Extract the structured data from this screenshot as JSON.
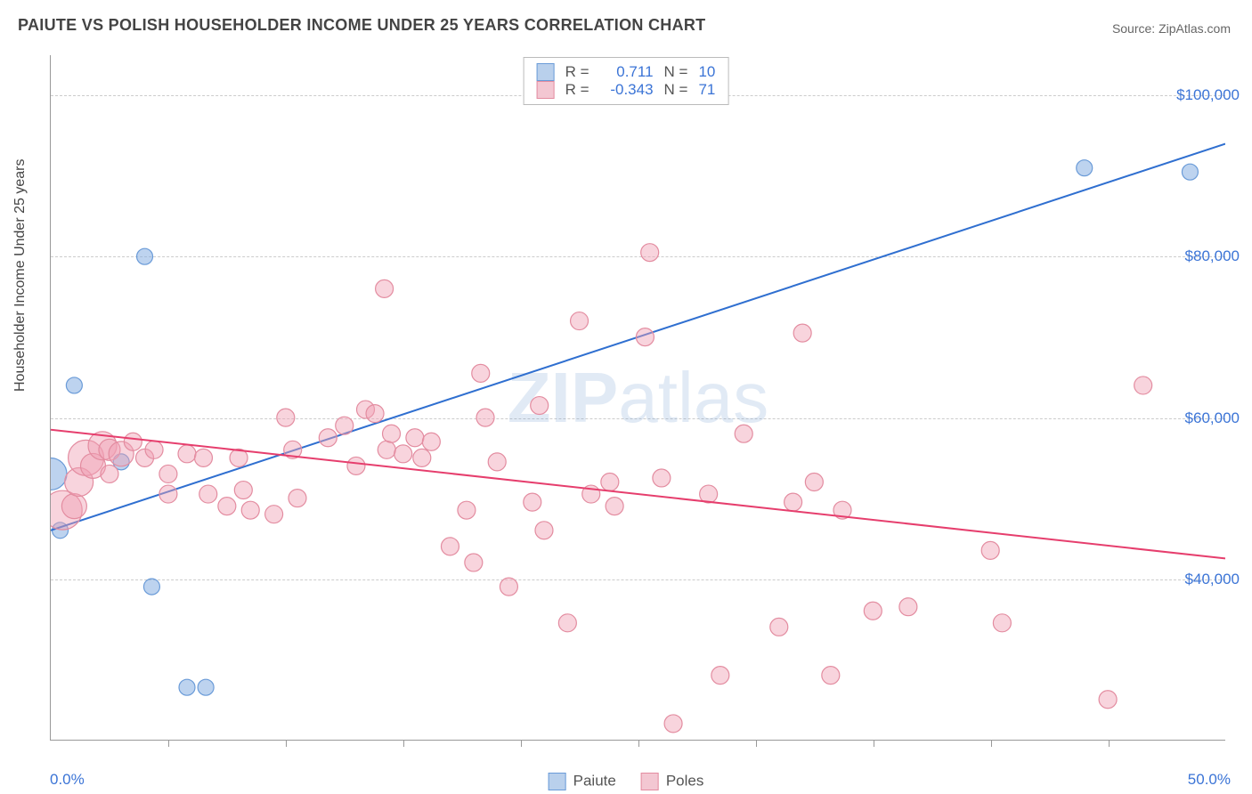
{
  "title": "PAIUTE VS POLISH HOUSEHOLDER INCOME UNDER 25 YEARS CORRELATION CHART",
  "source": "Source: ZipAtlas.com",
  "watermark_bold": "ZIP",
  "watermark_light": "atlas",
  "chart": {
    "type": "scatter",
    "background_color": "#ffffff",
    "grid_color": "#cccccc",
    "axis_color": "#999999",
    "label_color": "#444444",
    "tick_label_color": "#3b74d6",
    "title_fontsize": 18,
    "tick_fontsize": 17,
    "ylabel_fontsize": 16,
    "ylabel": "Householder Income Under 25 years",
    "xlim": [
      0,
      50
    ],
    "ylim": [
      20000,
      105000
    ],
    "y_gridlines": [
      40000,
      60000,
      80000,
      100000
    ],
    "y_tick_labels": [
      "$40,000",
      "$60,000",
      "$80,000",
      "$100,000"
    ],
    "x_minor_ticks": [
      5,
      10,
      15,
      20,
      25,
      30,
      35,
      40,
      45
    ],
    "x_left_label": "0.0%",
    "x_right_label": "50.0%",
    "series": [
      {
        "name": "Paiute",
        "color_fill": "rgba(135,175,225,0.55)",
        "color_stroke": "#6a9bd8",
        "swatch_fill": "#b9d0ec",
        "swatch_stroke": "#6a9bd8",
        "R": "0.711",
        "N": "10",
        "marker_default_r": 9,
        "trend": {
          "x1": 0,
          "y1": 46000,
          "x2": 50,
          "y2": 94000,
          "color": "#2f6fd0",
          "width": 2
        },
        "points": [
          {
            "x": 0.0,
            "y": 53000,
            "r": 18
          },
          {
            "x": 0.4,
            "y": 46000,
            "r": 9
          },
          {
            "x": 1.0,
            "y": 64000,
            "r": 9
          },
          {
            "x": 3.0,
            "y": 54500,
            "r": 9
          },
          {
            "x": 4.0,
            "y": 80000,
            "r": 9
          },
          {
            "x": 4.3,
            "y": 39000,
            "r": 9
          },
          {
            "x": 5.8,
            "y": 26500,
            "r": 9
          },
          {
            "x": 6.6,
            "y": 26500,
            "r": 9
          },
          {
            "x": 44.0,
            "y": 91000,
            "r": 9
          },
          {
            "x": 48.5,
            "y": 90500,
            "r": 9
          }
        ]
      },
      {
        "name": "Poles",
        "color_fill": "rgba(240,160,180,0.45)",
        "color_stroke": "#e38ca0",
        "swatch_fill": "#f3c7d2",
        "swatch_stroke": "#e38ca0",
        "R": "-0.343",
        "N": "71",
        "marker_default_r": 10,
        "trend": {
          "x1": 0,
          "y1": 58500,
          "x2": 50,
          "y2": 42500,
          "color": "#e63e6d",
          "width": 2
        },
        "points": [
          {
            "x": 0.5,
            "y": 48500,
            "r": 22
          },
          {
            "x": 1.0,
            "y": 49000,
            "r": 14
          },
          {
            "x": 1.2,
            "y": 52000,
            "r": 16
          },
          {
            "x": 1.5,
            "y": 55000,
            "r": 20
          },
          {
            "x": 1.8,
            "y": 54000,
            "r": 14
          },
          {
            "x": 2.2,
            "y": 56500,
            "r": 16
          },
          {
            "x": 2.5,
            "y": 53000,
            "r": 10
          },
          {
            "x": 2.5,
            "y": 56000,
            "r": 12
          },
          {
            "x": 3.0,
            "y": 55500,
            "r": 14
          },
          {
            "x": 3.5,
            "y": 57000,
            "r": 10
          },
          {
            "x": 4.0,
            "y": 55000,
            "r": 10
          },
          {
            "x": 4.4,
            "y": 56000,
            "r": 10
          },
          {
            "x": 5.0,
            "y": 53000,
            "r": 10
          },
          {
            "x": 5.8,
            "y": 55500,
            "r": 10
          },
          {
            "x": 5.0,
            "y": 50500,
            "r": 10
          },
          {
            "x": 6.5,
            "y": 55000,
            "r": 10
          },
          {
            "x": 6.7,
            "y": 50500,
            "r": 10
          },
          {
            "x": 7.5,
            "y": 49000,
            "r": 10
          },
          {
            "x": 8.0,
            "y": 55000,
            "r": 10
          },
          {
            "x": 8.5,
            "y": 48500,
            "r": 10
          },
          {
            "x": 8.2,
            "y": 51000,
            "r": 10
          },
          {
            "x": 9.5,
            "y": 48000,
            "r": 10
          },
          {
            "x": 10.0,
            "y": 60000,
            "r": 10
          },
          {
            "x": 10.3,
            "y": 56000,
            "r": 10
          },
          {
            "x": 10.5,
            "y": 50000,
            "r": 10
          },
          {
            "x": 11.8,
            "y": 57500,
            "r": 10
          },
          {
            "x": 12.5,
            "y": 59000,
            "r": 10
          },
          {
            "x": 13.0,
            "y": 54000,
            "r": 10
          },
          {
            "x": 13.4,
            "y": 61000,
            "r": 10
          },
          {
            "x": 13.8,
            "y": 60500,
            "r": 10
          },
          {
            "x": 14.2,
            "y": 76000,
            "r": 10
          },
          {
            "x": 14.3,
            "y": 56000,
            "r": 10
          },
          {
            "x": 14.5,
            "y": 58000,
            "r": 10
          },
          {
            "x": 15.0,
            "y": 55500,
            "r": 10
          },
          {
            "x": 15.5,
            "y": 57500,
            "r": 10
          },
          {
            "x": 15.8,
            "y": 55000,
            "r": 10
          },
          {
            "x": 16.2,
            "y": 57000,
            "r": 10
          },
          {
            "x": 17.0,
            "y": 44000,
            "r": 10
          },
          {
            "x": 17.7,
            "y": 48500,
            "r": 10
          },
          {
            "x": 18.0,
            "y": 42000,
            "r": 10
          },
          {
            "x": 18.3,
            "y": 65500,
            "r": 10
          },
          {
            "x": 18.5,
            "y": 60000,
            "r": 10
          },
          {
            "x": 19.0,
            "y": 54500,
            "r": 10
          },
          {
            "x": 19.5,
            "y": 39000,
            "r": 10
          },
          {
            "x": 20.5,
            "y": 49500,
            "r": 10
          },
          {
            "x": 20.8,
            "y": 61500,
            "r": 10
          },
          {
            "x": 21.0,
            "y": 46000,
            "r": 10
          },
          {
            "x": 22.0,
            "y": 34500,
            "r": 10
          },
          {
            "x": 22.5,
            "y": 72000,
            "r": 10
          },
          {
            "x": 23.0,
            "y": 50500,
            "r": 10
          },
          {
            "x": 23.8,
            "y": 52000,
            "r": 10
          },
          {
            "x": 24.0,
            "y": 49000,
            "r": 10
          },
          {
            "x": 25.3,
            "y": 70000,
            "r": 10
          },
          {
            "x": 25.5,
            "y": 80500,
            "r": 10
          },
          {
            "x": 26.0,
            "y": 52500,
            "r": 10
          },
          {
            "x": 26.5,
            "y": 22000,
            "r": 10
          },
          {
            "x": 28.0,
            "y": 50500,
            "r": 10
          },
          {
            "x": 28.5,
            "y": 28000,
            "r": 10
          },
          {
            "x": 29.5,
            "y": 58000,
            "r": 10
          },
          {
            "x": 31.0,
            "y": 34000,
            "r": 10
          },
          {
            "x": 31.6,
            "y": 49500,
            "r": 10
          },
          {
            "x": 32.0,
            "y": 70500,
            "r": 10
          },
          {
            "x": 32.5,
            "y": 52000,
            "r": 10
          },
          {
            "x": 33.2,
            "y": 28000,
            "r": 10
          },
          {
            "x": 33.7,
            "y": 48500,
            "r": 10
          },
          {
            "x": 35.0,
            "y": 36000,
            "r": 10
          },
          {
            "x": 36.5,
            "y": 36500,
            "r": 10
          },
          {
            "x": 40.0,
            "y": 43500,
            "r": 10
          },
          {
            "x": 40.5,
            "y": 34500,
            "r": 10
          },
          {
            "x": 45.0,
            "y": 25000,
            "r": 10
          },
          {
            "x": 46.5,
            "y": 64000,
            "r": 10
          }
        ]
      }
    ]
  },
  "legend_bottom": [
    {
      "label": "Paiute",
      "fill": "#b9d0ec",
      "stroke": "#6a9bd8"
    },
    {
      "label": "Poles",
      "fill": "#f3c7d2",
      "stroke": "#e38ca0"
    }
  ]
}
